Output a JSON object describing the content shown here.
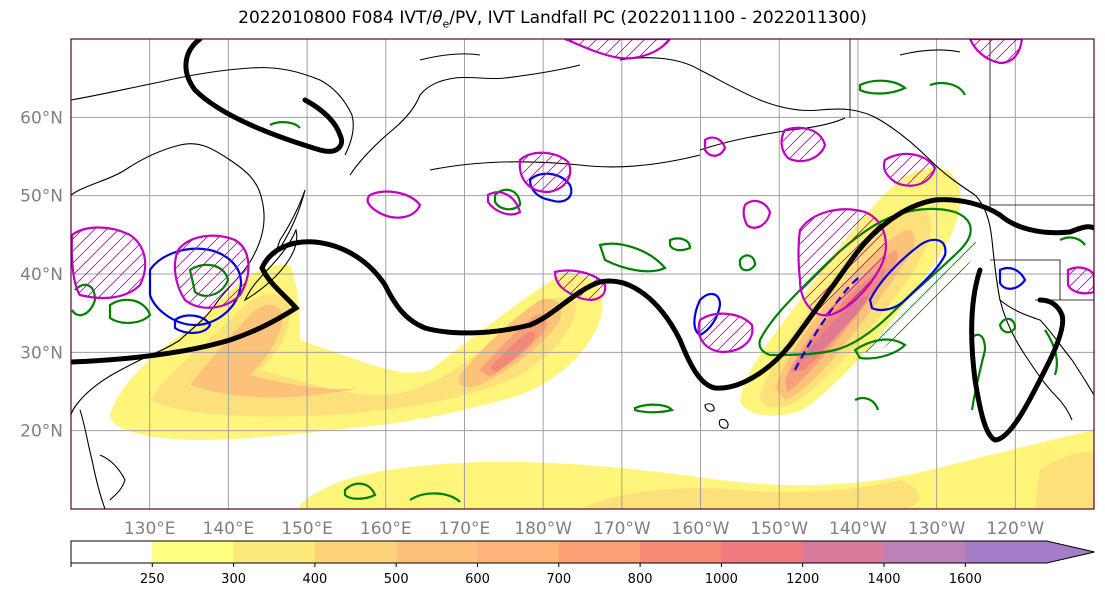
{
  "title": {
    "prefix": "2022010800 F084 IVT/",
    "theta": "θ",
    "theta_sub": "e",
    "suffix": "/PV, IVT Landfall PC (2022011100 - 2022011300)"
  },
  "latitudes": [
    {
      "lat": 20,
      "label": "20°N"
    },
    {
      "lat": 30,
      "label": "30°N"
    },
    {
      "lat": 40,
      "label": "40°N"
    },
    {
      "lat": 50,
      "label": "50°N"
    },
    {
      "lat": 60,
      "label": "60°N"
    }
  ],
  "longitudes": [
    {
      "lon": 130,
      "label": "130°E"
    },
    {
      "lon": 140,
      "label": "140°E"
    },
    {
      "lon": 150,
      "label": "150°E"
    },
    {
      "lon": 160,
      "label": "160°E"
    },
    {
      "lon": 170,
      "label": "170°E"
    },
    {
      "lon": 180,
      "label": "180°W"
    },
    {
      "lon": 190,
      "label": "170°W"
    },
    {
      "lon": 200,
      "label": "160°W"
    },
    {
      "lon": 210,
      "label": "150°W"
    },
    {
      "lon": 220,
      "label": "140°W"
    },
    {
      "lon": 230,
      "label": "130°W"
    },
    {
      "lon": 240,
      "label": "120°W"
    }
  ],
  "colorbar": {
    "levels": [
      "250",
      "300",
      "400",
      "500",
      "600",
      "700",
      "800",
      "1000",
      "1200",
      "1400",
      "1600"
    ],
    "colors": [
      "#ffff80",
      "#fde87a",
      "#fdd27a",
      "#fec07c",
      "#feb47a",
      "#fca076",
      "#f98a76",
      "#ef7a80",
      "#d87a9a",
      "#bc82b8",
      "#a47cc8"
    ]
  }
}
